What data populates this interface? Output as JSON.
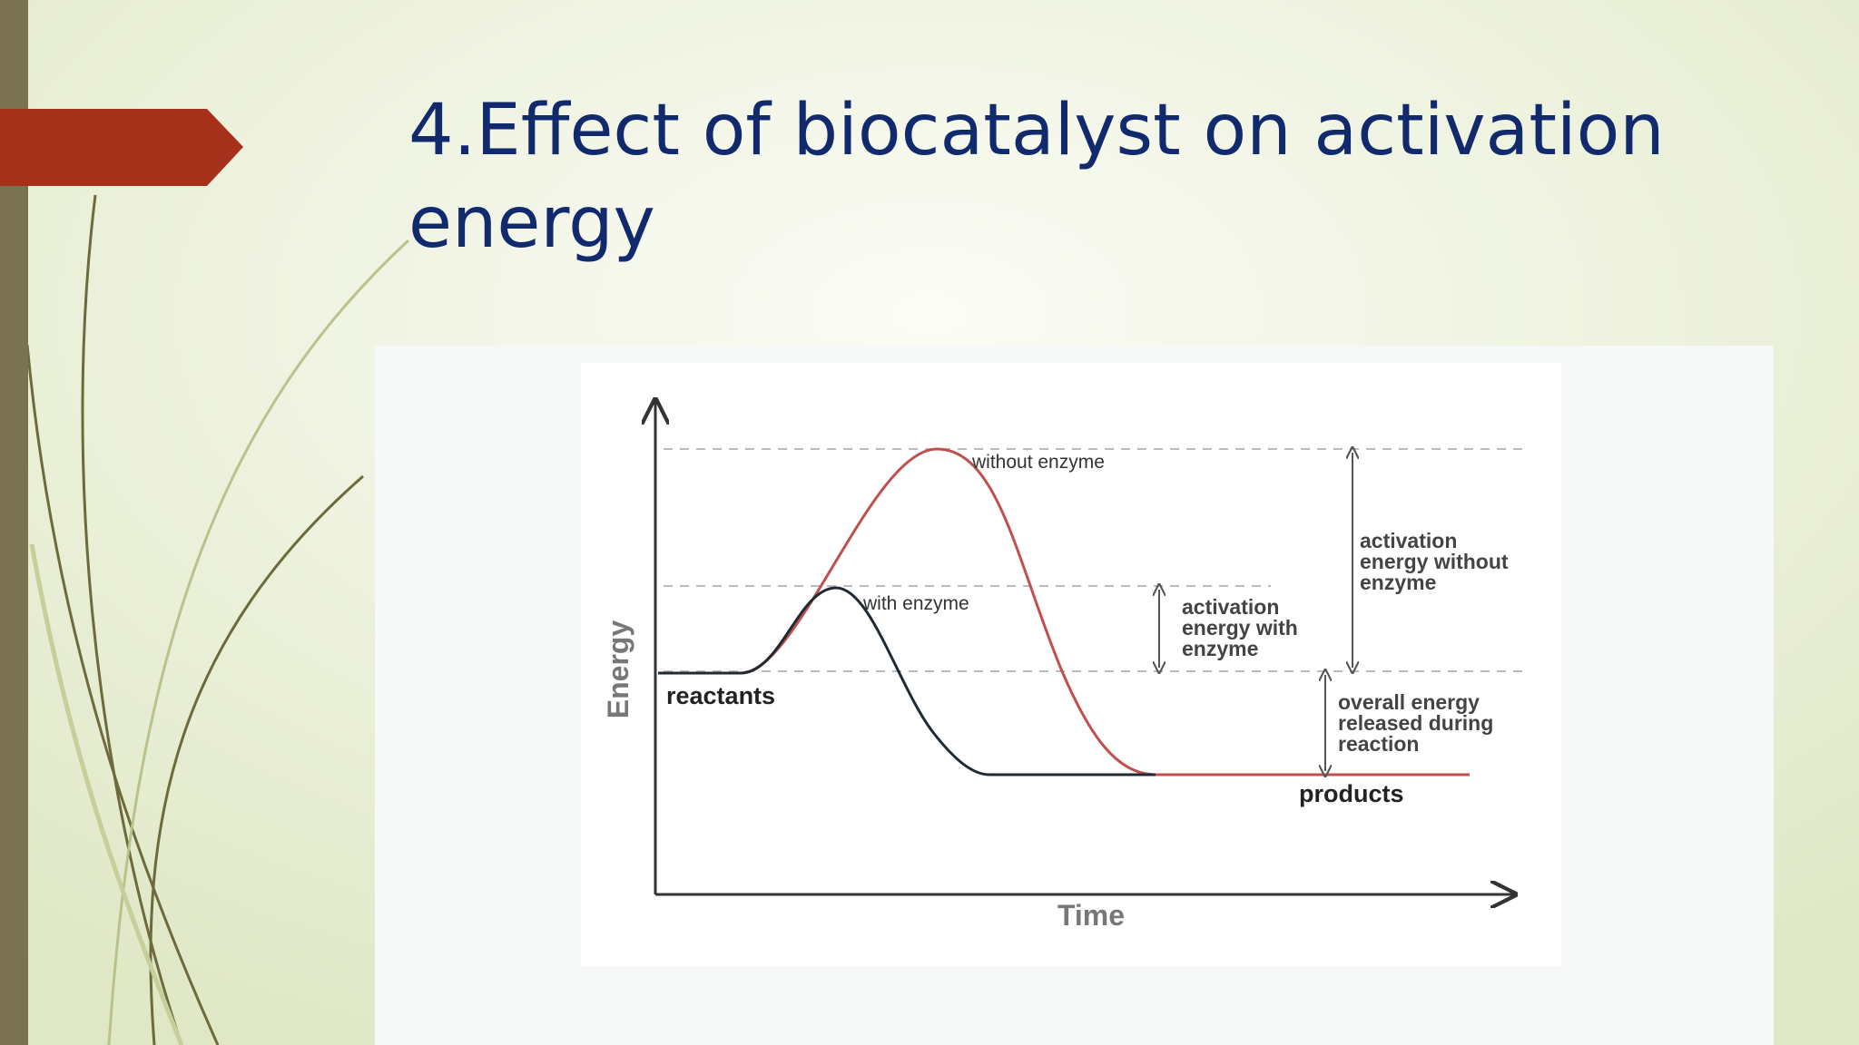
{
  "slide": {
    "title_lines": [
      "4.Effect of biocatalyst on activation",
      "energy"
    ],
    "diagram": {
      "y_axis_label": "Energy",
      "x_axis_label": "Time",
      "curve_without_label": "without enzyme",
      "curve_with_label": "with enzyme",
      "reactants_label": "reactants",
      "products_label": "products",
      "annotation_with": [
        "activation",
        "energy with",
        "enzyme"
      ],
      "annotation_without": [
        "activation",
        "energy without",
        "enzyme"
      ],
      "annotation_overall": [
        "overall energy",
        "released during",
        "reaction"
      ]
    }
  }
}
